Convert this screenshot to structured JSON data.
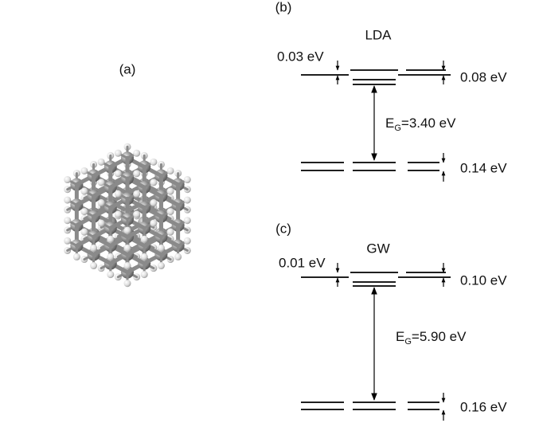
{
  "panels": {
    "a": {
      "label": "(a)"
    },
    "b": {
      "label": "(b)",
      "method": "LDA",
      "top_split": "0.03 eV",
      "top_spread": "0.08 eV",
      "gap": {
        "symbol": "E",
        "subscript": "G",
        "value": "=3.40 eV"
      },
      "bottom_spread": "0.14 eV"
    },
    "c": {
      "label": "(c)",
      "method": "GW",
      "top_split": "0.01 eV",
      "top_spread": "0.10 eV",
      "gap": {
        "symbol": "E",
        "subscript": "G",
        "value": "=5.90 eV"
      },
      "bottom_spread": "0.16 eV"
    }
  }
}
